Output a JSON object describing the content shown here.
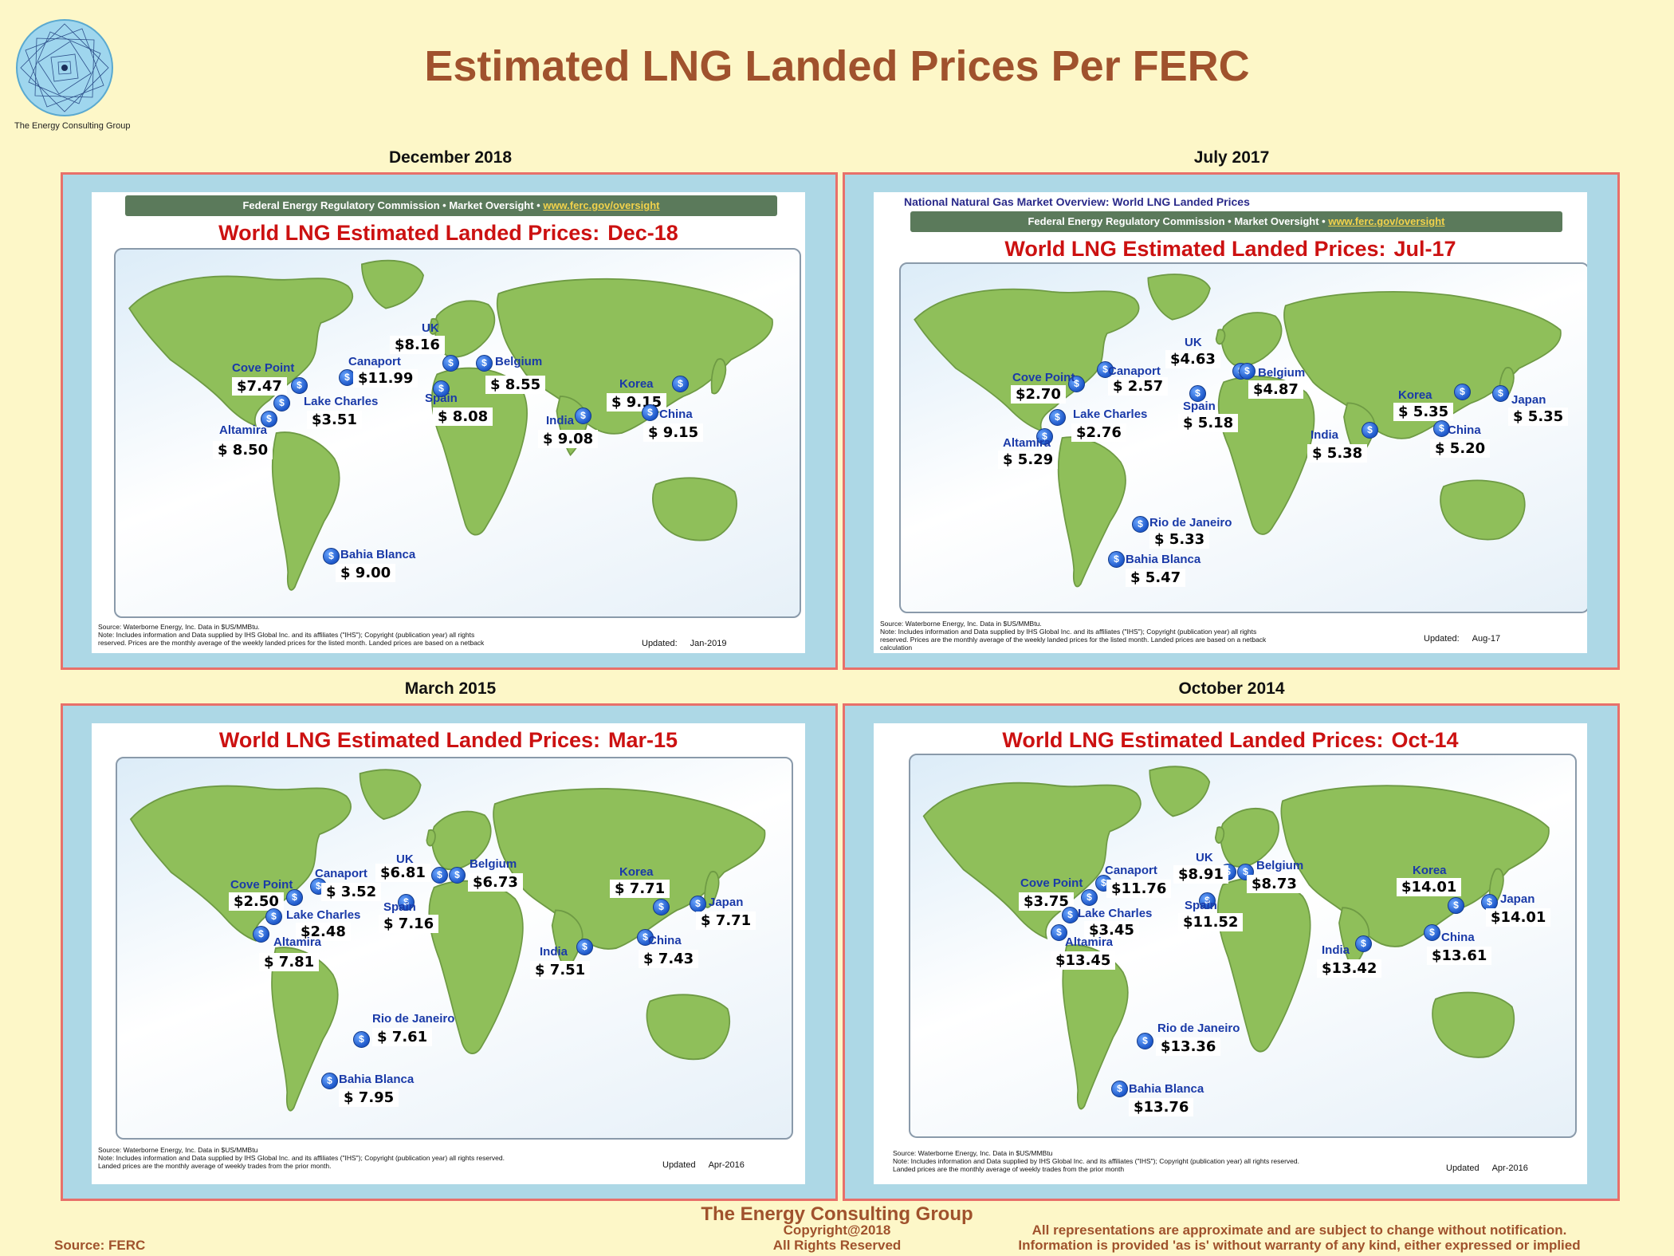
{
  "header": {
    "logo_text": "The Energy Consulting Group",
    "title": "Estimated LNG Landed Prices Per FERC"
  },
  "panels": [
    {
      "caption": "December 2018",
      "slide_header": "",
      "ferc_bar": "Federal Energy Regulatory Commission • Market Oversight •",
      "ferc_link": "www.ferc.gov/oversight",
      "title": "World LNG Estimated Landed Prices:",
      "period": "Dec-18",
      "source_lines": [
        "Source: Waterborne Energy, Inc.  Data in $US/MMBtu.",
        "Note: Includes information and Data supplied by IHS Global Inc. and its affiliates (\"IHS\"); Copyright (publication year) all rights",
        "reserved.  Prices are the monthly average of the weekly landed prices for the listed month. Landed prices are based on a netback"
      ],
      "updated_label": "Updated:",
      "updated_value": "Jan-2019",
      "markers": [
        {
          "city": "UK",
          "price": "$8.16"
        },
        {
          "city": "Canaport",
          "price": "$11.99"
        },
        {
          "city": "Belgium",
          "price": "$  8.55"
        },
        {
          "city": "Cove Point",
          "price": "$7.47"
        },
        {
          "city": "Lake Charles",
          "price": "$3.51"
        },
        {
          "city": "Spain",
          "price": "$  8.08"
        },
        {
          "city": "Altamira",
          "price": "$  8.50"
        },
        {
          "city": "Korea",
          "price": "$  9.15"
        },
        {
          "city": "China",
          "price": "$  9.15"
        },
        {
          "city": "India",
          "price": "$  9.08"
        },
        {
          "city": "Bahia Blanca",
          "price": "$  9.00"
        }
      ]
    },
    {
      "caption": "July 2017",
      "slide_header": "National Natural Gas Market Overview: World LNG Landed Prices",
      "ferc_bar": "Federal Energy Regulatory Commission • Market Oversight •",
      "ferc_link": "www.ferc.gov/oversight",
      "title": "World LNG Estimated Landed Prices:",
      "period": "Jul-17",
      "source_lines": [
        "Source: Waterborne Energy, Inc.  Data in $US/MMBtu.",
        "Note: Includes information and Data supplied by IHS Global Inc. and its affiliates (\"IHS\"); Copyright (publication year) all rights",
        "reserved.  Prices are the monthly average of the weekly landed prices for the listed month. Landed prices are based on a netback",
        "calculation"
      ],
      "updated_label": "Updated:",
      "updated_value": "Aug-17",
      "markers": [
        {
          "city": "UK",
          "price": "$4.63"
        },
        {
          "city": "Canaport",
          "price": "$  2.57"
        },
        {
          "city": "Belgium",
          "price": "$4.87"
        },
        {
          "city": "Cove Point",
          "price": "$2.70"
        },
        {
          "city": "Lake Charles",
          "price": "$2.76"
        },
        {
          "city": "Spain",
          "price": "$  5.18"
        },
        {
          "city": "Altamira",
          "price": "$  5.29"
        },
        {
          "city": "Korea",
          "price": "$  5.35"
        },
        {
          "city": "Japan",
          "price": "$  5.35"
        },
        {
          "city": "China",
          "price": "$  5.20"
        },
        {
          "city": "India",
          "price": "$  5.38"
        },
        {
          "city": "Rio de Janeiro",
          "price": "$  5.33"
        },
        {
          "city": "Bahia Blanca",
          "price": "$  5.47"
        }
      ]
    },
    {
      "caption": "March 2015",
      "slide_header": "",
      "ferc_bar": "",
      "ferc_link": "",
      "title": "World LNG Estimated Landed Prices:",
      "period": "Mar-15",
      "source_lines": [
        "Source: Waterborne Energy, Inc.  Data in $US/MMBtu",
        "Note: Includes information and Data supplied by IHS Global Inc. and its affiliates (\"IHS\"); Copyright (publication year) all rights reserved.",
        "Landed prices are the monthly average of weekly trades from the prior month."
      ],
      "updated_label": "Updated",
      "updated_value": "Apr-2016",
      "markers": [
        {
          "city": "UK",
          "price": "$6.81"
        },
        {
          "city": "Canaport",
          "price": "$  3.52"
        },
        {
          "city": "Belgium",
          "price": "$6.73"
        },
        {
          "city": "Cove Point",
          "price": "$2.50"
        },
        {
          "city": "Lake Charles",
          "price": "$2.48"
        },
        {
          "city": "Spain",
          "price": "$  7.16"
        },
        {
          "city": "Altamira",
          "price": "$  7.81"
        },
        {
          "city": "Korea",
          "price": "$  7.71"
        },
        {
          "city": "Japan",
          "price": "$  7.71"
        },
        {
          "city": "China",
          "price": "$  7.43"
        },
        {
          "city": "India",
          "price": "$  7.51"
        },
        {
          "city": "Rio de Janeiro",
          "price": "$  7.61"
        },
        {
          "city": "Bahia Blanca",
          "price": "$  7.95"
        }
      ]
    },
    {
      "caption": "October 2014",
      "slide_header": "",
      "ferc_bar": "",
      "ferc_link": "",
      "title": "World LNG Estimated Landed Prices:",
      "period": "Oct-14",
      "source_lines": [
        "Source: Waterborne Energy, Inc.  Data in $US/MMBtu",
        "Note: Includes information and Data supplied by IHS Global Inc. and its affiliates (\"IHS\"); Copyright (publication year) all rights reserved.",
        "Landed prices are the monthly average of weekly trades from the prior month"
      ],
      "updated_label": "Updated",
      "updated_value": "Apr-2016",
      "markers": [
        {
          "city": "UK",
          "price": "$8.91"
        },
        {
          "city": "Canaport",
          "price": "$11.76"
        },
        {
          "city": "Belgium",
          "price": "$8.73"
        },
        {
          "city": "Cove Point",
          "price": "$3.75"
        },
        {
          "city": "Lake Charles",
          "price": "$3.45"
        },
        {
          "city": "Spain",
          "price": "$11.52"
        },
        {
          "city": "Altamira",
          "price": "$13.45"
        },
        {
          "city": "Korea",
          "price": "$14.01"
        },
        {
          "city": "Japan",
          "price": "$14.01"
        },
        {
          "city": "China",
          "price": "$13.61"
        },
        {
          "city": "India",
          "price": "$13.42"
        },
        {
          "city": "Rio de Janeiro",
          "price": "$13.36"
        },
        {
          "city": "Bahia Blanca",
          "price": "$13.76"
        }
      ]
    }
  ],
  "footer": {
    "company": "The Energy Consulting Group",
    "copyright_1": "Copyright@2018",
    "copyright_2": "All Rights Reserved",
    "source": "Source: FERC",
    "disclaimer_1": "All representations are approximate and are subject to change without notification.",
    "disclaimer_2": "Information is provided 'as is' without warranty of any kind, either expressed or implied"
  },
  "icons": {
    "marker": "dollar-icon",
    "logo": "spiral-logo-icon"
  },
  "colors": {
    "title": "#a0522d",
    "slide_title": "#cc1111",
    "city": "#1a3aa8",
    "land": "#8fbf5a",
    "panel_border": "#e8706a",
    "panel_bg": "#add8e6",
    "page_bg": "#fdf7c8"
  }
}
